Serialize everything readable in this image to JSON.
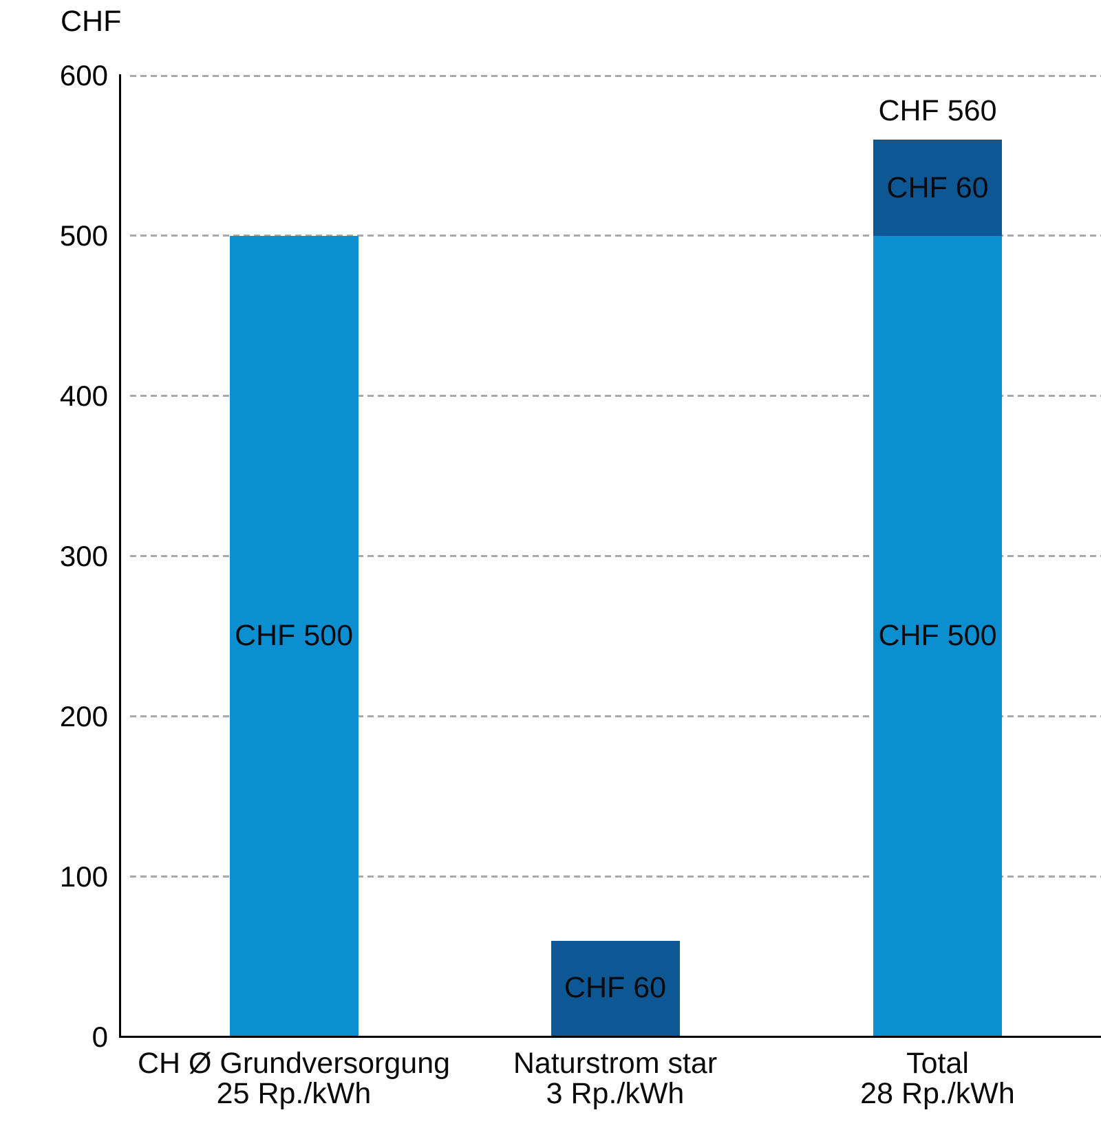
{
  "chart_data": {
    "type": "bar",
    "stacked": true,
    "title": "CHF",
    "ylabel": "CHF",
    "ylim": [
      0,
      600
    ],
    "yticks": [
      0,
      100,
      200,
      300,
      400,
      500,
      600
    ],
    "grid": "dashed-horizontal-gridlines",
    "legend": "none",
    "colors": {
      "light_blue": "#0B8FD0",
      "dark_blue": "#0D5794",
      "axis": "#000000",
      "gridline": "#A9A9A9"
    },
    "categories": [
      "CH Ø Grundversorgung",
      "Naturstrom star",
      "Total"
    ],
    "category_sublabels": [
      "25 Rp./kWh",
      "3 Rp./kWh",
      "28 Rp./kWh"
    ],
    "bars": [
      {
        "category": "CH Ø Grundversorgung",
        "sublabel": "25 Rp./kWh",
        "total": 500,
        "total_label": "",
        "segments": [
          {
            "value": 500,
            "color_key": "light_blue",
            "label": "CHF 500"
          }
        ]
      },
      {
        "category": "Naturstrom star",
        "sublabel": "3 Rp./kWh",
        "total": 60,
        "total_label": "",
        "segments": [
          {
            "value": 60,
            "color_key": "dark_blue",
            "label": "CHF 60"
          }
        ]
      },
      {
        "category": "Total",
        "sublabel": "28 Rp./kWh",
        "total": 560,
        "total_label": "CHF 560",
        "segments": [
          {
            "value": 500,
            "color_key": "light_blue",
            "label": "CHF 500"
          },
          {
            "value": 60,
            "color_key": "dark_blue",
            "label": "CHF 60"
          }
        ]
      }
    ]
  }
}
